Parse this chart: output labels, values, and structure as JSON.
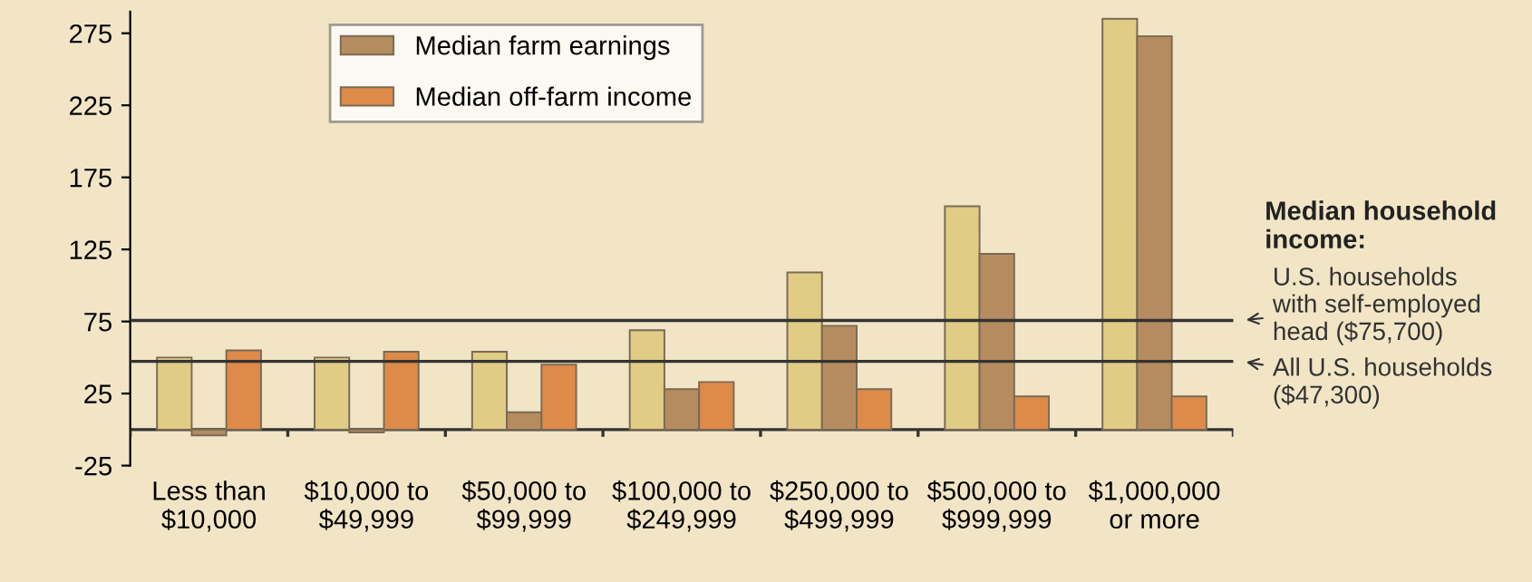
{
  "chart_data": {
    "type": "bar",
    "categories": [
      "Less than\n$10,000",
      "$10,000 to\n$49,999",
      "$50,000 to\n$99,999",
      "$100,000 to\n$249,999",
      "$250,000 to\n$499,999",
      "$500,000 to\n$999,999",
      "$1,000,000\nor more"
    ],
    "series": [
      {
        "color": "#e0cc84",
        "values": [
          50,
          50,
          54,
          69,
          109,
          155,
          285
        ]
      },
      {
        "name": "Median farm earnings",
        "color": "#b58c5f",
        "values": [
          -4,
          -2,
          12,
          28,
          72,
          122,
          273
        ]
      },
      {
        "name": "Median off-farm income",
        "color": "#de8a48",
        "values": [
          55,
          54,
          45,
          33,
          28,
          23,
          23
        ]
      }
    ],
    "ylim": [
      -25,
      290
    ],
    "yticks": [
      -25,
      25,
      75,
      125,
      175,
      225,
      275
    ],
    "ref_lines": [
      {
        "axis": "y",
        "value": 75.7,
        "label": "U.S. households\nwith self-employed\nhead ($75,700)",
        "color": "#333333"
      },
      {
        "axis": "y",
        "value": 47.3,
        "label": "All U.S. households\n($47,300)",
        "color": "#333333"
      }
    ],
    "annotations": [
      "Median household\nincome:"
    ],
    "legend": "top",
    "grid": false
  }
}
